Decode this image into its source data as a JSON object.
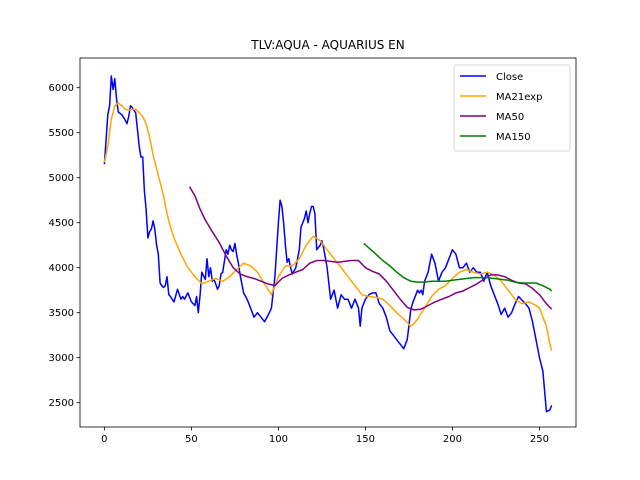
{
  "chart_data": {
    "type": "line",
    "title": "TLV:AQUA - AQUARIUS EN",
    "xlabel": "",
    "ylabel": "",
    "xlim": [
      -14,
      271
    ],
    "ylim": [
      2230,
      6330
    ],
    "xticks": [
      0,
      50,
      100,
      150,
      200,
      250
    ],
    "yticks": [
      2500,
      3000,
      3500,
      4000,
      4500,
      5000,
      5500,
      6000
    ],
    "grid": false,
    "legend_position": "top-right",
    "series": [
      {
        "name": "Close",
        "color": "#0000ff",
        "x": [
          0,
          2,
          3,
          4,
          5,
          6,
          7,
          8,
          10,
          12,
          13,
          14,
          15,
          16,
          18,
          20,
          21,
          22,
          23,
          24,
          25,
          26,
          27,
          28,
          29,
          30,
          31,
          32,
          33,
          34,
          35,
          36,
          37,
          38,
          39,
          40,
          42,
          44,
          45,
          46,
          48,
          50,
          52,
          53,
          54,
          55,
          56,
          58,
          59,
          60,
          61,
          62,
          63,
          64,
          65,
          66,
          67,
          68,
          70,
          71,
          72,
          73,
          74,
          75,
          76,
          77,
          78,
          80,
          82,
          84,
          86,
          88,
          90,
          92,
          94,
          96,
          98,
          100,
          101,
          102,
          103,
          104,
          105,
          106,
          107,
          108,
          110,
          112,
          113,
          114,
          115,
          116,
          117,
          118,
          119,
          120,
          121,
          122,
          124,
          125,
          126,
          128,
          130,
          132,
          134,
          136,
          138,
          140,
          142,
          144,
          146,
          147,
          148,
          150,
          152,
          154,
          156,
          158,
          160,
          162,
          164,
          166,
          168,
          170,
          172,
          174,
          175,
          176,
          177,
          178,
          179,
          180,
          181,
          182,
          183,
          184,
          186,
          188,
          190,
          192,
          194,
          196,
          198,
          200,
          202,
          204,
          206,
          208,
          210,
          212,
          214,
          216,
          218,
          220,
          222,
          224,
          226,
          228,
          230,
          232,
          234,
          236,
          238,
          240,
          242,
          244,
          246,
          248,
          250,
          252,
          254,
          256,
          257
        ],
        "y": [
          5150,
          5700,
          5800,
          6130,
          5980,
          6100,
          5880,
          5730,
          5700,
          5640,
          5600,
          5680,
          5800,
          5780,
          5720,
          5350,
          5230,
          5230,
          4850,
          4650,
          4330,
          4400,
          4430,
          4520,
          4430,
          4250,
          4150,
          3830,
          3800,
          3780,
          3800,
          3900,
          3700,
          3680,
          3650,
          3620,
          3760,
          3650,
          3680,
          3650,
          3720,
          3620,
          3580,
          3680,
          3500,
          3700,
          3950,
          3870,
          4100,
          3900,
          4000,
          3850,
          3870,
          3820,
          3760,
          3800,
          3930,
          3950,
          4200,
          4150,
          4250,
          4200,
          4180,
          4270,
          4150,
          4050,
          3920,
          3720,
          3650,
          3550,
          3450,
          3500,
          3450,
          3400,
          3470,
          3550,
          3900,
          4500,
          4750,
          4680,
          4500,
          4250,
          4060,
          4100,
          4000,
          3930,
          4000,
          4200,
          4450,
          4500,
          4550,
          4630,
          4500,
          4600,
          4680,
          4680,
          4600,
          4200,
          4250,
          4300,
          4220,
          4000,
          3650,
          3750,
          3550,
          3700,
          3650,
          3650,
          3550,
          3650,
          3550,
          3350,
          3550,
          3650,
          3700,
          3720,
          3720,
          3600,
          3550,
          3450,
          3300,
          3250,
          3200,
          3150,
          3100,
          3200,
          3350,
          3530,
          3600,
          3650,
          3700,
          3750,
          3720,
          3750,
          3700,
          3850,
          3950,
          4150,
          4050,
          3850,
          3950,
          4000,
          4100,
          4200,
          4150,
          4000,
          4000,
          4050,
          3950,
          4000,
          3950,
          3950,
          3850,
          3950,
          3800,
          3700,
          3600,
          3480,
          3550,
          3450,
          3500,
          3600,
          3680,
          3640,
          3600,
          3550,
          3400,
          3200,
          3000,
          2850,
          2400,
          2420,
          2470
        ]
      },
      {
        "name": "MA21exp",
        "color": "#ffa500",
        "x": [
          0,
          2,
          4,
          6,
          8,
          10,
          12,
          14,
          16,
          18,
          20,
          22,
          24,
          26,
          28,
          30,
          32,
          34,
          36,
          38,
          40,
          44,
          48,
          52,
          56,
          60,
          64,
          68,
          72,
          76,
          80,
          84,
          88,
          92,
          96,
          100,
          104,
          108,
          112,
          116,
          120,
          124,
          128,
          132,
          136,
          140,
          144,
          148,
          152,
          156,
          160,
          164,
          168,
          172,
          176,
          178,
          180,
          184,
          188,
          192,
          196,
          200,
          204,
          208,
          212,
          216,
          220,
          224,
          228,
          232,
          236,
          240,
          244,
          248,
          250,
          252,
          254,
          256,
          257
        ],
        "y": [
          5170,
          5350,
          5650,
          5800,
          5830,
          5800,
          5760,
          5750,
          5760,
          5760,
          5720,
          5680,
          5600,
          5450,
          5250,
          5100,
          4950,
          4800,
          4600,
          4450,
          4330,
          4150,
          4000,
          3900,
          3820,
          3850,
          3880,
          3850,
          3900,
          3980,
          4050,
          4020,
          3950,
          3820,
          3700,
          3900,
          4020,
          4020,
          4100,
          4250,
          4350,
          4300,
          4200,
          4100,
          4000,
          3900,
          3800,
          3700,
          3680,
          3670,
          3650,
          3580,
          3500,
          3430,
          3350,
          3380,
          3430,
          3550,
          3680,
          3760,
          3800,
          3880,
          3950,
          3980,
          3950,
          3930,
          3950,
          3920,
          3850,
          3750,
          3650,
          3600,
          3620,
          3580,
          3550,
          3450,
          3350,
          3150,
          3080
        ]
      },
      {
        "name": "MA50",
        "color": "#800080",
        "x": [
          49,
          52,
          55,
          58,
          62,
          66,
          70,
          74,
          78,
          82,
          86,
          90,
          94,
          98,
          102,
          106,
          110,
          114,
          118,
          122,
          126,
          130,
          134,
          138,
          142,
          146,
          150,
          154,
          158,
          162,
          166,
          170,
          174,
          178,
          182,
          186,
          190,
          194,
          198,
          202,
          206,
          210,
          214,
          218,
          222,
          226,
          230,
          234,
          238,
          242,
          246,
          250,
          254,
          257
        ],
        "y": [
          4900,
          4800,
          4650,
          4530,
          4400,
          4280,
          4130,
          4000,
          3930,
          3900,
          3880,
          3850,
          3820,
          3800,
          3880,
          3920,
          3950,
          3980,
          4050,
          4080,
          4080,
          4070,
          4060,
          4070,
          4080,
          4080,
          4000,
          3960,
          3930,
          3850,
          3750,
          3650,
          3560,
          3530,
          3540,
          3580,
          3620,
          3650,
          3680,
          3720,
          3740,
          3780,
          3820,
          3870,
          3920,
          3920,
          3900,
          3860,
          3830,
          3820,
          3770,
          3700,
          3600,
          3540
        ]
      },
      {
        "name": "MA150",
        "color": "#008000",
        "x": [
          149,
          152,
          156,
          160,
          164,
          168,
          172,
          176,
          180,
          184,
          188,
          192,
          196,
          200,
          204,
          208,
          212,
          216,
          220,
          224,
          228,
          232,
          236,
          240,
          244,
          248,
          252,
          256,
          257
        ],
        "y": [
          4270,
          4220,
          4150,
          4080,
          4020,
          3950,
          3890,
          3850,
          3840,
          3840,
          3850,
          3850,
          3850,
          3860,
          3870,
          3880,
          3890,
          3890,
          3890,
          3880,
          3870,
          3860,
          3840,
          3830,
          3830,
          3830,
          3800,
          3760,
          3740
        ]
      }
    ]
  }
}
